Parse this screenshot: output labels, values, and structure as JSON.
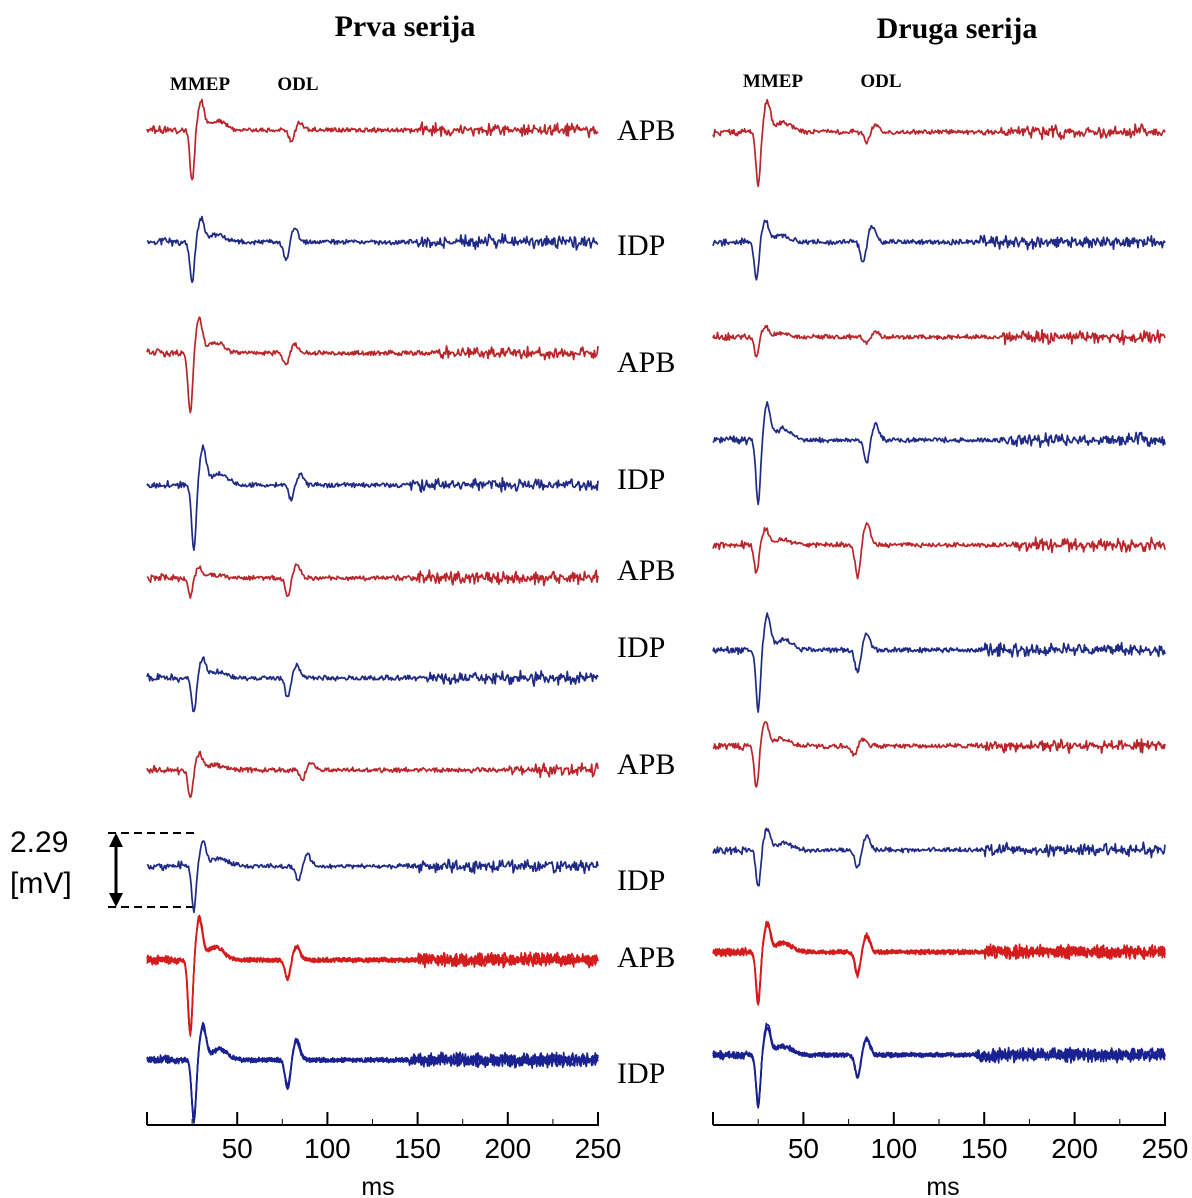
{
  "colors": {
    "apb": "#b8262b",
    "idp": "#1f2a85",
    "apb_overlay": "#d41c1c",
    "idp_overlay": "#1a2190",
    "scale": "#000000"
  },
  "panels": [
    {
      "title": "Prva serija",
      "markers": [
        "MMEP",
        "ODL"
      ]
    },
    {
      "title": "Druga serija",
      "markers": [
        "MMEP",
        "ODL"
      ]
    }
  ],
  "row_labels": [
    "APB",
    "IDP",
    "APB",
    "IDP",
    "APB",
    "IDP",
    "APB",
    "IDP",
    "APB",
    "IDP"
  ],
  "scale_bar": {
    "value": "2.29",
    "unit": "[mV]"
  },
  "chart_data": [
    {
      "type": "line",
      "title": "Prva serija",
      "xlabel": "ms",
      "xlim": [
        0,
        250
      ],
      "xticks": [
        50,
        100,
        150,
        200,
        250
      ],
      "annotations": [
        "MMEP",
        "ODL"
      ],
      "scale_bar_mV": 2.29,
      "series": [
        {
          "name": "APB",
          "muscle": "APB",
          "mmep_ms": 25,
          "odl_ms": 80,
          "mmep_amp_mV": 1.6,
          "odl_amp_mV": 0.35,
          "noise_from_ms": 150
        },
        {
          "name": "IDP",
          "muscle": "IDP",
          "mmep_ms": 25,
          "odl_ms": 77,
          "mmep_amp_mV": 1.3,
          "odl_amp_mV": 0.6,
          "noise_from_ms": 150
        },
        {
          "name": "APB",
          "muscle": "APB",
          "mmep_ms": 24,
          "odl_ms": 77,
          "mmep_amp_mV": 1.9,
          "odl_amp_mV": 0.4,
          "noise_from_ms": 160
        },
        {
          "name": "IDP",
          "muscle": "IDP",
          "mmep_ms": 26,
          "odl_ms": 80,
          "mmep_amp_mV": 2.1,
          "odl_amp_mV": 0.5,
          "noise_from_ms": 145
        },
        {
          "name": "APB",
          "muscle": "APB",
          "mmep_ms": 24,
          "odl_ms": 78,
          "mmep_amp_mV": 0.6,
          "odl_amp_mV": 0.6,
          "noise_from_ms": 150
        },
        {
          "name": "IDP",
          "muscle": "IDP",
          "mmep_ms": 26,
          "odl_ms": 78,
          "mmep_amp_mV": 1.1,
          "odl_amp_mV": 0.6,
          "noise_from_ms": 155
        },
        {
          "name": "APB",
          "muscle": "APB",
          "mmep_ms": 24,
          "odl_ms": 86,
          "mmep_amp_mV": 0.9,
          "odl_amp_mV": 0.3,
          "noise_from_ms": 200
        },
        {
          "name": "IDP",
          "muscle": "IDP",
          "mmep_ms": 26,
          "odl_ms": 84,
          "mmep_amp_mV": 1.4,
          "odl_amp_mV": 0.5,
          "noise_from_ms": 145
        },
        {
          "name": "APB",
          "muscle": "APB",
          "mmep_ms": 24,
          "odl_ms": 78,
          "mmep_amp_mV": 2.2,
          "odl_amp_mV": 0.6,
          "noise_from_ms": 150,
          "overlay": true
        },
        {
          "name": "IDP",
          "muscle": "IDP",
          "mmep_ms": 26,
          "odl_ms": 78,
          "mmep_amp_mV": 1.8,
          "odl_amp_mV": 0.8,
          "noise_from_ms": 145,
          "overlay": true
        }
      ]
    },
    {
      "type": "line",
      "title": "Druga serija",
      "xlabel": "ms",
      "xlim": [
        0,
        250
      ],
      "xticks": [
        50,
        100,
        150,
        200,
        250
      ],
      "annotations": [
        "MMEP",
        "ODL"
      ],
      "series": [
        {
          "name": "APB",
          "muscle": "APB",
          "mmep_ms": 25,
          "odl_ms": 85,
          "mmep_amp_mV": 1.7,
          "odl_amp_mV": 0.3,
          "noise_from_ms": 150
        },
        {
          "name": "IDP",
          "muscle": "IDP",
          "mmep_ms": 24,
          "odl_ms": 83,
          "mmep_amp_mV": 1.2,
          "odl_amp_mV": 0.7,
          "noise_from_ms": 145
        },
        {
          "name": "APB",
          "muscle": "APB",
          "mmep_ms": 24,
          "odl_ms": 85,
          "mmep_amp_mV": 0.6,
          "odl_amp_mV": 0.2,
          "noise_from_ms": 160
        },
        {
          "name": "IDP",
          "muscle": "IDP",
          "mmep_ms": 25,
          "odl_ms": 85,
          "mmep_amp_mV": 2.0,
          "odl_amp_mV": 0.7,
          "noise_from_ms": 160
        },
        {
          "name": "APB",
          "muscle": "APB",
          "mmep_ms": 24,
          "odl_ms": 80,
          "mmep_amp_mV": 0.9,
          "odl_amp_mV": 1.0,
          "noise_from_ms": 165
        },
        {
          "name": "IDP",
          "muscle": "IDP",
          "mmep_ms": 25,
          "odl_ms": 80,
          "mmep_amp_mV": 1.9,
          "odl_amp_mV": 0.7,
          "noise_from_ms": 150
        },
        {
          "name": "APB",
          "muscle": "APB",
          "mmep_ms": 24,
          "odl_ms": 78,
          "mmep_amp_mV": 1.3,
          "odl_amp_mV": 0.3,
          "noise_from_ms": 150
        },
        {
          "name": "IDP",
          "muscle": "IDP",
          "mmep_ms": 25,
          "odl_ms": 80,
          "mmep_amp_mV": 1.2,
          "odl_amp_mV": 0.6,
          "noise_from_ms": 150
        },
        {
          "name": "APB",
          "muscle": "APB",
          "mmep_ms": 25,
          "odl_ms": 80,
          "mmep_amp_mV": 1.7,
          "odl_amp_mV": 0.8,
          "noise_from_ms": 150,
          "overlay": true
        },
        {
          "name": "IDP",
          "muscle": "IDP",
          "mmep_ms": 25,
          "odl_ms": 80,
          "mmep_amp_mV": 1.7,
          "odl_amp_mV": 0.7,
          "noise_from_ms": 145,
          "overlay": true
        }
      ]
    }
  ]
}
